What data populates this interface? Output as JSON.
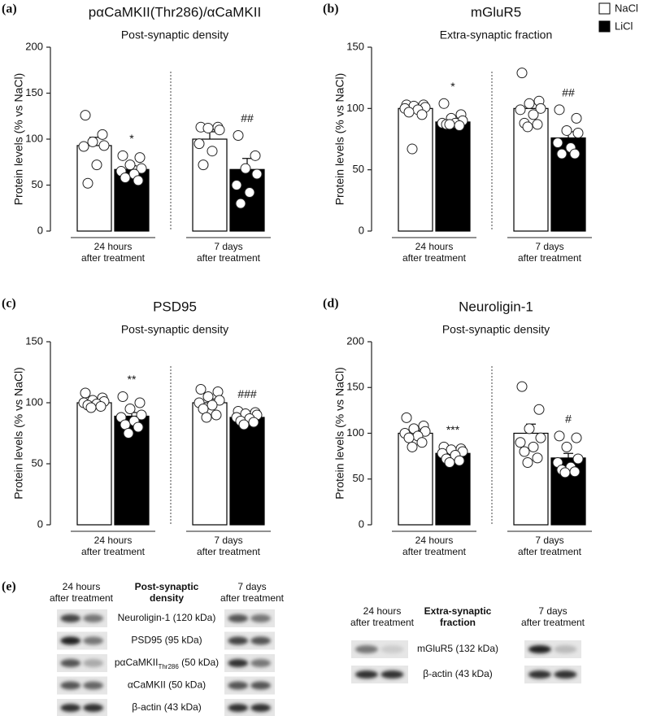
{
  "chart_data": [
    {
      "type": "bar",
      "label": "(a)",
      "title": "pαCaMKII(Thr286)/αCaMKII",
      "subtitle": "Post-synaptic density",
      "y_label": "Protein levels (% vs NaCl)",
      "groups": [
        [
          "24 hours",
          "after treatment"
        ],
        [
          "7 days",
          "after treatment"
        ]
      ],
      "ylim": [
        0,
        200
      ],
      "yticks": [
        0,
        50,
        100,
        150,
        200
      ],
      "series": [
        {
          "name": "NaCl",
          "color": "#ffffff",
          "values": [
            93,
            100
          ],
          "errors": [
            9,
            8
          ],
          "points": [
            [
              126,
              105,
              97,
              93,
              92,
              72,
              52
            ],
            [
              113,
              113,
              112,
              110,
              95,
              87,
              72
            ]
          ]
        },
        {
          "name": "LiCl",
          "color": "#000000",
          "values": [
            67,
            67
          ],
          "errors": [
            4,
            12
          ],
          "points": [
            [
              82,
              80,
              72,
              68,
              65,
              62,
              58,
              55
            ],
            [
              104,
              82,
              68,
              62,
              50,
              42,
              30
            ]
          ],
          "annotations": [
            "*",
            "##"
          ]
        }
      ]
    },
    {
      "type": "bar",
      "label": "(b)",
      "title": "mGluR5",
      "subtitle": "Extra-synaptic fraction",
      "y_label": "Protein levels (% vs NaCl)",
      "groups": [
        [
          "24 hours",
          "after treatment"
        ],
        [
          "7 days",
          "after treatment"
        ]
      ],
      "ylim": [
        0,
        150
      ],
      "yticks": [
        0,
        50,
        100,
        150
      ],
      "series": [
        {
          "color": "#ffffff",
          "values": [
            100,
            100
          ],
          "errors": [
            4,
            5
          ],
          "points": [
            [
              103,
              103,
              102,
              101,
              100,
              99,
              97,
              95,
              67
            ],
            [
              129,
              106,
              104,
              100,
              99,
              95,
              88,
              87,
              85
            ]
          ]
        },
        {
          "color": "#000000",
          "values": [
            89,
            76
          ],
          "errors": [
            2,
            5
          ],
          "points": [
            [
              104,
              95,
              92,
              90,
              88,
              88,
              87,
              86,
              87
            ],
            [
              99,
              92,
              82,
              80,
              72,
              68,
              63,
              63
            ]
          ],
          "annotations": [
            "*",
            "##"
          ]
        }
      ]
    },
    {
      "type": "bar",
      "label": "(c)",
      "title": "PSD95",
      "subtitle": "Post-synaptic density",
      "y_label": "Protein levels (% vs NaCl)",
      "groups": [
        [
          "24 hours",
          "after treatment"
        ],
        [
          "7 days",
          "after treatment"
        ]
      ],
      "ylim": [
        0,
        150
      ],
      "yticks": [
        0,
        50,
        100,
        150
      ],
      "series": [
        {
          "color": "#ffffff",
          "values": [
            100,
            100
          ],
          "errors": [
            1.5,
            3
          ],
          "points": [
            [
              108,
              104,
              102,
              101,
              100,
              99,
              98,
              97,
              96
            ],
            [
              111,
              109,
              105,
              102,
              100,
              98,
              95,
              90,
              88
            ]
          ]
        },
        {
          "color": "#000000",
          "values": [
            89,
            88
          ],
          "errors": [
            3,
            2
          ],
          "points": [
            [
              105,
              100,
              95,
              90,
              88,
              85,
              82,
              80,
              75
            ],
            [
              93,
              92,
              91,
              90,
              88,
              87,
              85,
              84,
              82
            ]
          ],
          "annotations": [
            "**",
            "###"
          ]
        }
      ]
    },
    {
      "type": "bar",
      "label": "(d)",
      "title": "Neuroligin-1",
      "subtitle": "Post-synaptic density",
      "y_label": "Protein levels (% vs NaCl)",
      "groups": [
        [
          "24 hours",
          "after treatment"
        ],
        [
          "7 days",
          "after treatment"
        ]
      ],
      "ylim": [
        0,
        200
      ],
      "yticks": [
        0,
        50,
        100,
        150,
        200
      ],
      "series": [
        {
          "color": "#ffffff",
          "values": [
            100,
            100
          ],
          "errors": [
            3,
            10
          ],
          "points": [
            [
              117,
              108,
              105,
              102,
              100,
              97,
              95,
              90,
              85
            ],
            [
              151,
              126,
              105,
              95,
              90,
              85,
              80,
              73,
              68
            ]
          ]
        },
        {
          "color": "#000000",
          "values": [
            78,
            73
          ],
          "errors": [
            2,
            5
          ],
          "points": [
            [
              85,
              83,
              82,
              80,
              78,
              76,
              72,
              70,
              68
            ],
            [
              97,
              95,
              85,
              72,
              68,
              63,
              60,
              58,
              57
            ]
          ],
          "annotations": [
            "***",
            "#"
          ]
        }
      ]
    }
  ],
  "blots": {
    "label": "(e)",
    "left": {
      "time_a": [
        "24 hours",
        "after treatment"
      ],
      "heading": [
        "Post-synaptic",
        "density"
      ],
      "time_b": [
        "7 days",
        "after treatment"
      ],
      "proteins": [
        [
          "Neuroligin-1 (120 kDa)"
        ],
        [
          "PSD95 (95 kDa)"
        ],
        [
          "pαCaMKII",
          "Thr286",
          " (50 kDa)"
        ],
        [
          "αCaMKII (50 kDa)"
        ],
        [
          "β-actin (43 kDa)"
        ]
      ]
    },
    "right": {
      "time_a": [
        "24 hours",
        "after treatment"
      ],
      "heading": [
        "Extra-synaptic",
        "fraction"
      ],
      "time_b": [
        "7 days",
        "after treatment"
      ],
      "proteins": [
        [
          "mGluR5 (132 kDa)"
        ],
        [
          "β-actin (43 kDa)"
        ]
      ]
    }
  }
}
